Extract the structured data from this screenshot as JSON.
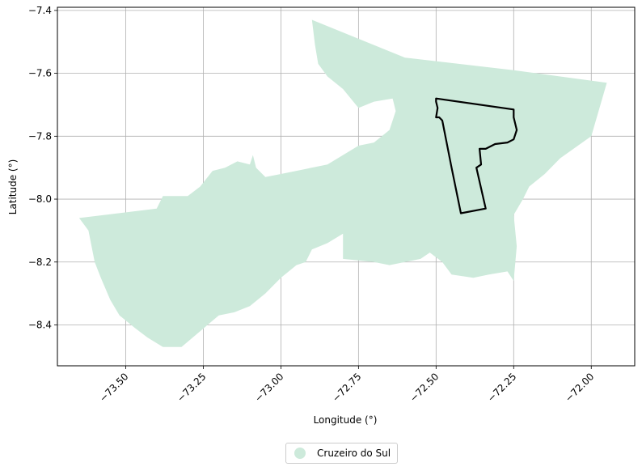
{
  "chart_data": {
    "type": "map",
    "xlabel": "Longitude (°)",
    "ylabel": "Latitude (°)",
    "xlim": [
      -73.72,
      -71.86
    ],
    "ylim": [
      -8.53,
      -7.39
    ],
    "xticks": [
      {
        "value": -73.5,
        "label": "−73.50"
      },
      {
        "value": -73.25,
        "label": "−73.25"
      },
      {
        "value": -73.0,
        "label": "−73.00"
      },
      {
        "value": -72.75,
        "label": "−72.75"
      },
      {
        "value": -72.5,
        "label": "−72.50"
      },
      {
        "value": -72.25,
        "label": "−72.25"
      },
      {
        "value": -72.0,
        "label": "−72.00"
      }
    ],
    "yticks": [
      {
        "value": -7.4,
        "label": "−7.4"
      },
      {
        "value": -7.6,
        "label": "−7.6"
      },
      {
        "value": -7.8,
        "label": "−7.8"
      },
      {
        "value": -8.0,
        "label": "−8.0"
      },
      {
        "value": -8.2,
        "label": "−8.2"
      },
      {
        "value": -8.4,
        "label": "−8.4"
      }
    ],
    "grid": true,
    "legend_placement": "bottom-center",
    "region_color": "#cdeadb",
    "outline_color": "#000000",
    "legend": [
      {
        "label": "Cruzeiro do Sul",
        "color": "#cdeadb"
      }
    ],
    "region_polygon": [
      [
        -72.9,
        -7.43
      ],
      [
        -72.6,
        -7.55
      ],
      [
        -72.25,
        -7.59
      ],
      [
        -71.95,
        -7.63
      ],
      [
        -72.0,
        -7.8
      ],
      [
        -72.1,
        -7.87
      ],
      [
        -72.15,
        -7.92
      ],
      [
        -72.2,
        -7.96
      ],
      [
        -72.22,
        -8.0
      ],
      [
        -72.25,
        -8.05
      ],
      [
        -72.24,
        -8.15
      ],
      [
        -72.25,
        -8.26
      ],
      [
        -72.27,
        -8.23
      ],
      [
        -72.33,
        -8.24
      ],
      [
        -72.38,
        -8.25
      ],
      [
        -72.45,
        -8.24
      ],
      [
        -72.48,
        -8.2
      ],
      [
        -72.52,
        -8.17
      ],
      [
        -72.55,
        -8.19
      ],
      [
        -72.65,
        -8.21
      ],
      [
        -72.7,
        -8.2
      ],
      [
        -72.8,
        -8.19
      ],
      [
        -72.8,
        -8.11
      ],
      [
        -72.85,
        -8.14
      ],
      [
        -72.9,
        -8.16
      ],
      [
        -72.92,
        -8.2
      ],
      [
        -72.95,
        -8.21
      ],
      [
        -73.0,
        -8.25
      ],
      [
        -73.05,
        -8.3
      ],
      [
        -73.1,
        -8.34
      ],
      [
        -73.15,
        -8.36
      ],
      [
        -73.2,
        -8.37
      ],
      [
        -73.32,
        -8.47
      ],
      [
        -73.38,
        -8.47
      ],
      [
        -73.43,
        -8.44
      ],
      [
        -73.47,
        -8.41
      ],
      [
        -73.52,
        -8.37
      ],
      [
        -73.55,
        -8.32
      ],
      [
        -73.58,
        -8.25
      ],
      [
        -73.6,
        -8.2
      ],
      [
        -73.62,
        -8.1
      ],
      [
        -73.65,
        -8.06
      ],
      [
        -73.4,
        -8.03
      ],
      [
        -73.38,
        -7.99
      ],
      [
        -73.3,
        -7.99
      ],
      [
        -73.26,
        -7.96
      ],
      [
        -73.22,
        -7.91
      ],
      [
        -73.18,
        -7.9
      ],
      [
        -73.14,
        -7.88
      ],
      [
        -73.1,
        -7.89
      ],
      [
        -73.09,
        -7.86
      ],
      [
        -73.08,
        -7.9
      ],
      [
        -73.05,
        -7.93
      ],
      [
        -73.0,
        -7.92
      ],
      [
        -72.95,
        -7.91
      ],
      [
        -72.85,
        -7.89
      ],
      [
        -72.8,
        -7.86
      ],
      [
        -72.75,
        -7.83
      ],
      [
        -72.7,
        -7.82
      ],
      [
        -72.65,
        -7.78
      ],
      [
        -72.63,
        -7.72
      ],
      [
        -72.64,
        -7.68
      ],
      [
        -72.7,
        -7.69
      ],
      [
        -72.75,
        -7.71
      ],
      [
        -72.8,
        -7.65
      ],
      [
        -72.85,
        -7.61
      ],
      [
        -72.88,
        -7.57
      ],
      [
        -72.89,
        -7.51
      ]
    ],
    "outline_polygon": [
      [
        -72.5,
        -7.68
      ],
      [
        -72.25,
        -7.715
      ],
      [
        -72.25,
        -7.74
      ],
      [
        -72.24,
        -7.78
      ],
      [
        -72.25,
        -7.81
      ],
      [
        -72.27,
        -7.82
      ],
      [
        -72.31,
        -7.825
      ],
      [
        -72.34,
        -7.84
      ],
      [
        -72.36,
        -7.84
      ],
      [
        -72.355,
        -7.89
      ],
      [
        -72.37,
        -7.9
      ],
      [
        -72.34,
        -8.03
      ],
      [
        -72.42,
        -8.045
      ],
      [
        -72.45,
        -7.9
      ],
      [
        -72.48,
        -7.75
      ],
      [
        -72.49,
        -7.74
      ],
      [
        -72.5,
        -7.74
      ],
      [
        -72.495,
        -7.71
      ],
      [
        -72.5,
        -7.69
      ]
    ]
  }
}
